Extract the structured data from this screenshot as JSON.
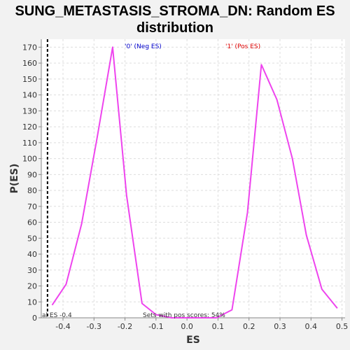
{
  "chart_data": {
    "type": "line",
    "title_lines": [
      "SUNG_METASTASIS_STROMA_DN: Random ES",
      "distribution"
    ],
    "xlabel": "ES",
    "ylabel": "P(ES)",
    "xlim": [
      -0.47,
      0.51
    ],
    "ylim": [
      0,
      175
    ],
    "xticks": [
      -0.4,
      -0.3,
      -0.2,
      -0.1,
      0.0,
      0.1,
      0.2,
      0.3,
      0.4,
      0.5
    ],
    "xtick_labels": [
      "-0.4",
      "-0.3",
      "-0.2",
      "-0.1",
      "0.0",
      "0.1",
      "0.2",
      "0.3",
      "0.4",
      "0.5"
    ],
    "yticks": [
      0,
      10,
      20,
      30,
      40,
      50,
      60,
      70,
      80,
      90,
      100,
      110,
      120,
      130,
      140,
      150,
      160,
      170
    ],
    "ytick_labels": [
      "0",
      "10",
      "20",
      "30",
      "40",
      "50",
      "60",
      "70",
      "80",
      "90",
      "100",
      "110",
      "120",
      "130",
      "140",
      "150",
      "160",
      "170"
    ],
    "grid": true,
    "series": [
      {
        "color": "#ee44ee",
        "x": [
          -0.435,
          -0.39,
          -0.34,
          -0.29,
          -0.24,
          -0.195,
          -0.145,
          -0.1,
          -0.05,
          0.0,
          0.05,
          0.095,
          0.145,
          0.195,
          0.24,
          0.29,
          0.34,
          0.385,
          0.435,
          0.485
        ],
        "y": [
          8,
          21,
          59,
          113,
          170,
          77,
          9,
          2,
          0,
          0,
          0,
          0,
          5,
          66,
          159,
          137,
          100,
          52,
          18,
          6
        ]
      }
    ],
    "vline": {
      "x": -0.45,
      "style": "dashed",
      "color": "#000000"
    },
    "annotations": {
      "neg_label": "'0' (Neg ES)",
      "neg_color": "#0000cc",
      "pos_label": "'1' (Pos ES)",
      "pos_color": "#dd0000",
      "bottom_label": "Sets with pos scores: 54%",
      "actual_es_label": "al ES -0.4"
    }
  }
}
